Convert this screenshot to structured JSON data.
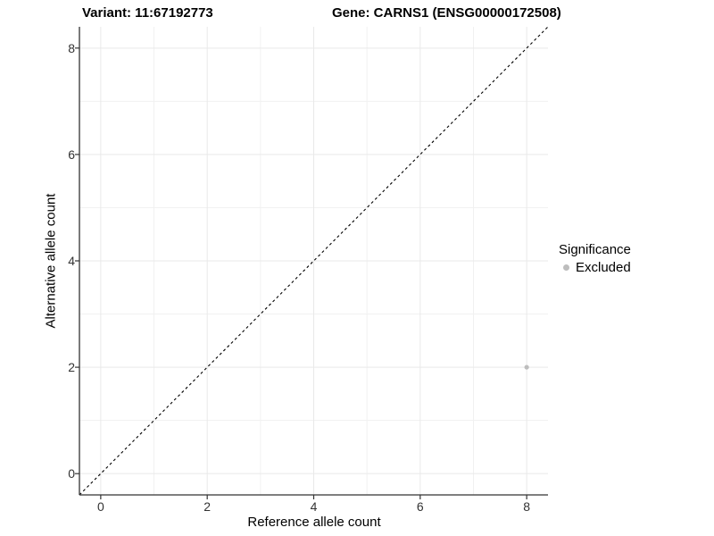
{
  "titles": {
    "variant": "Variant: 11:67192773",
    "gene": "Gene: CARNS1 (ENSG00000172508)"
  },
  "legend": {
    "title": "Significance",
    "items": [
      {
        "label": "Excluded",
        "color": "#bdbdbd"
      }
    ]
  },
  "chart_data": {
    "type": "scatter",
    "title_left": "Variant: 11:67192773",
    "title_right": "Gene: CARNS1 (ENSG00000172508)",
    "xlabel": "Reference allele count",
    "ylabel": "Alternative allele count",
    "xlim": [
      -0.4,
      8.4
    ],
    "ylim": [
      -0.4,
      8.4
    ],
    "xticks": [
      0,
      2,
      4,
      6,
      8
    ],
    "yticks": [
      0,
      2,
      4,
      6,
      8
    ],
    "minor_xticks": [
      1,
      3,
      5,
      7
    ],
    "minor_yticks": [
      1,
      3,
      5,
      7
    ],
    "grid": true,
    "legend_position": "right",
    "series": [
      {
        "name": "Excluded",
        "color": "#bdbdbd",
        "points": [
          {
            "x": 8,
            "y": 2
          }
        ]
      }
    ],
    "reference_line": {
      "type": "identity",
      "equation": "y = x",
      "style": "dashed",
      "color": "#000000"
    },
    "colors": {
      "panel_background": "#ffffff",
      "grid_major": "#e9e9e9",
      "grid_minor": "#f1f1f1",
      "axis_line": "#333333",
      "tick_text": "#333333",
      "point": "#bdbdbd"
    }
  }
}
